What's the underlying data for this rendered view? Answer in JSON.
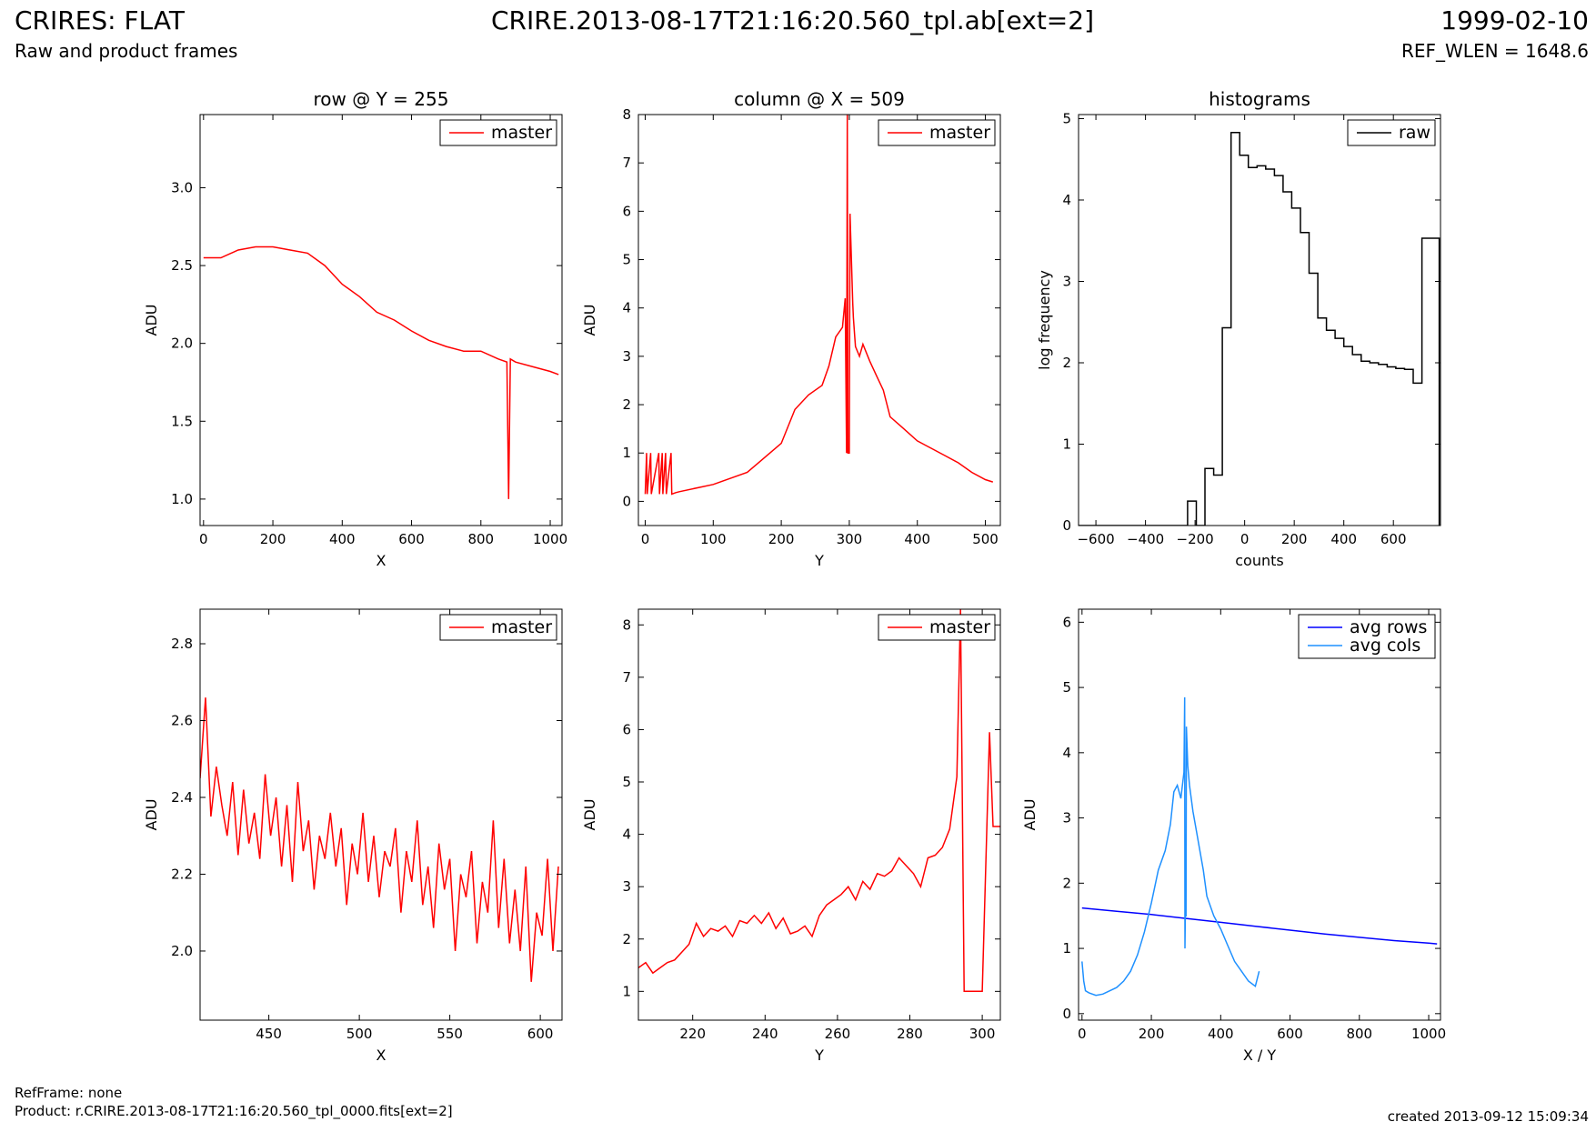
{
  "header": {
    "title": "CRIRES: FLAT",
    "subtitle": "Raw and product frames",
    "file": "CRIRE.2013-08-17T21:16:20.560_tpl.ab[ext=2]",
    "date": "1999-02-10",
    "ref_wlen": "REF_WLEN = 1648.6"
  },
  "footer": {
    "ref_frame": "RefFrame: none",
    "product": "Product: r.CRIRE.2013-08-17T21:16:20.560_tpl_0000.fits[ext=2]",
    "created": "created 2013-09-12 15:09:34"
  },
  "chart_data": [
    {
      "type": "line",
      "title": "row @ Y = 255",
      "xlabel": "X",
      "ylabel": "ADU",
      "xlim": [
        -10,
        1034
      ],
      "ylim": [
        0.83,
        3.47
      ],
      "xticks": [
        0,
        200,
        400,
        600,
        800,
        1000
      ],
      "yticks": [
        1.0,
        1.5,
        2.0,
        2.5,
        3.0
      ],
      "ytick_labels": [
        "1.0",
        "1.5",
        "2.0",
        "2.5",
        "3.0"
      ],
      "grid": false,
      "legend": "top-right",
      "step": false,
      "series": [
        {
          "name": "master",
          "color": "#ff0000",
          "x": [
            0,
            50,
            100,
            150,
            200,
            250,
            300,
            350,
            400,
            450,
            500,
            550,
            600,
            650,
            700,
            750,
            800,
            850,
            875,
            880,
            885,
            900,
            950,
            1000,
            1024
          ],
          "y": [
            2.55,
            2.55,
            2.6,
            2.62,
            2.62,
            2.6,
            2.58,
            2.5,
            2.38,
            2.3,
            2.2,
            2.15,
            2.08,
            2.02,
            1.98,
            1.95,
            1.95,
            1.9,
            1.88,
            1.0,
            1.9,
            1.88,
            1.85,
            1.82,
            1.8
          ]
        }
      ]
    },
    {
      "type": "line",
      "title": "column @ X = 509",
      "xlabel": "Y",
      "ylabel": "ADU",
      "xlim": [
        -10,
        522
      ],
      "ylim": [
        -0.5,
        8
      ],
      "xticks": [
        0,
        100,
        200,
        300,
        400,
        500
      ],
      "yticks": [
        0,
        1,
        2,
        3,
        4,
        5,
        6,
        7,
        8
      ],
      "ytick_labels": [
        "0",
        "1",
        "2",
        "3",
        "4",
        "5",
        "6",
        "7",
        "8"
      ],
      "grid": false,
      "legend": "top-right",
      "step": false,
      "series": [
        {
          "name": "master",
          "color": "#ff0000",
          "x": [
            0,
            2,
            3,
            8,
            9,
            20,
            21,
            25,
            26,
            30,
            31,
            38,
            39,
            45,
            50,
            100,
            150,
            200,
            220,
            240,
            260,
            270,
            280,
            290,
            294,
            296,
            297,
            298,
            300,
            301,
            305,
            306,
            308,
            309,
            315,
            320,
            330,
            340,
            350,
            360,
            380,
            400,
            420,
            440,
            460,
            480,
            500,
            511
          ],
          "y": [
            0.15,
            1.0,
            0.15,
            1.0,
            0.15,
            1.0,
            0.15,
            1.0,
            0.15,
            1.0,
            0.15,
            1.0,
            0.15,
            0.18,
            0.2,
            0.35,
            0.6,
            1.2,
            1.9,
            2.2,
            2.4,
            2.8,
            3.4,
            3.6,
            4.2,
            1.0,
            8.0,
            1.0,
            1.0,
            5.95,
            4.1,
            3.8,
            3.4,
            3.2,
            3.0,
            3.25,
            2.9,
            2.6,
            2.3,
            1.75,
            1.5,
            1.25,
            1.1,
            0.95,
            0.8,
            0.6,
            0.45,
            0.4
          ]
        }
      ]
    },
    {
      "type": "bar",
      "title": "histograms",
      "xlabel": "counts",
      "ylabel": "log frequency",
      "xlim": [
        -670,
        790
      ],
      "ylim": [
        0,
        5.05
      ],
      "xticks": [
        -600,
        -400,
        -200,
        0,
        200,
        400,
        600
      ],
      "xtick_labels": [
        "−600",
        "−400",
        "−200",
        "0",
        "200",
        "400",
        "600"
      ],
      "yticks": [
        0,
        1,
        2,
        3,
        4,
        5
      ],
      "ytick_labels": [
        "0",
        "1",
        "2",
        "3",
        "4",
        "5"
      ],
      "grid": false,
      "legend": "top-right",
      "step": true,
      "series": [
        {
          "name": "raw",
          "color": "#000000",
          "x": [
            -670,
            -230,
            -230,
            -195,
            -195,
            -160,
            -160,
            -125,
            -125,
            -90,
            -90,
            -55,
            -55,
            -20,
            -20,
            15,
            15,
            50,
            50,
            85,
            85,
            120,
            120,
            155,
            155,
            190,
            190,
            225,
            225,
            260,
            260,
            295,
            295,
            330,
            330,
            365,
            365,
            400,
            400,
            435,
            435,
            470,
            470,
            505,
            505,
            540,
            540,
            575,
            575,
            610,
            610,
            645,
            645,
            680,
            680,
            715,
            715,
            750,
            750,
            785,
            785
          ],
          "y": [
            0,
            0,
            0.3,
            0.3,
            0,
            0,
            0.7,
            0.7,
            0.62,
            0.62,
            2.43,
            2.43,
            4.83,
            4.83,
            4.55,
            4.55,
            4.4,
            4.4,
            4.42,
            4.42,
            4.38,
            4.38,
            4.3,
            4.3,
            4.1,
            4.1,
            3.9,
            3.9,
            3.6,
            3.6,
            3.1,
            3.1,
            2.55,
            2.55,
            2.4,
            2.4,
            2.3,
            2.3,
            2.2,
            2.2,
            2.1,
            2.1,
            2.02,
            2.02,
            2.0,
            2.0,
            1.98,
            1.98,
            1.95,
            1.95,
            1.93,
            1.93,
            1.92,
            1.92,
            1.75,
            1.75,
            3.53,
            3.53,
            3.53,
            3.53,
            0
          ]
        }
      ]
    },
    {
      "type": "line",
      "title": "",
      "xlabel": "X",
      "ylabel": "ADU",
      "xlim": [
        412,
        612
      ],
      "ylim": [
        1.82,
        2.89
      ],
      "xticks": [
        450,
        500,
        550,
        600
      ],
      "yticks": [
        2.0,
        2.2,
        2.4,
        2.6,
        2.8
      ],
      "ytick_labels": [
        "2.0",
        "2.2",
        "2.4",
        "2.6",
        "2.8"
      ],
      "grid": false,
      "legend": "top-right",
      "step": true,
      "series": [
        {
          "name": "master",
          "color": "#ff0000",
          "x": [
            412,
            415,
            418,
            421,
            424,
            427,
            430,
            433,
            436,
            439,
            442,
            445,
            448,
            451,
            454,
            457,
            460,
            463,
            466,
            469,
            472,
            475,
            478,
            481,
            484,
            487,
            490,
            493,
            496,
            499,
            502,
            505,
            508,
            511,
            514,
            517,
            520,
            523,
            526,
            529,
            532,
            535,
            538,
            541,
            544,
            547,
            550,
            553,
            556,
            559,
            562,
            565,
            568,
            571,
            574,
            577,
            580,
            583,
            586,
            589,
            592,
            595,
            598,
            601,
            604,
            607,
            610
          ],
          "y": [
            2.45,
            2.66,
            2.35,
            2.48,
            2.38,
            2.3,
            2.44,
            2.25,
            2.42,
            2.28,
            2.36,
            2.24,
            2.46,
            2.3,
            2.4,
            2.22,
            2.38,
            2.18,
            2.44,
            2.26,
            2.34,
            2.16,
            2.3,
            2.24,
            2.36,
            2.22,
            2.32,
            2.12,
            2.28,
            2.2,
            2.36,
            2.18,
            2.3,
            2.14,
            2.26,
            2.22,
            2.32,
            2.1,
            2.26,
            2.18,
            2.34,
            2.12,
            2.22,
            2.06,
            2.28,
            2.16,
            2.24,
            2.0,
            2.2,
            2.14,
            2.26,
            2.02,
            2.18,
            2.1,
            2.34,
            2.06,
            2.24,
            2.02,
            2.16,
            2.0,
            2.22,
            1.92,
            2.1,
            2.04,
            2.24,
            2.0,
            2.22
          ]
        }
      ]
    },
    {
      "type": "line",
      "title": "",
      "xlabel": "Y",
      "ylabel": "ADU",
      "xlim": [
        205,
        305
      ],
      "ylim": [
        0.45,
        8.3
      ],
      "xticks": [
        220,
        240,
        260,
        280,
        300
      ],
      "yticks": [
        1,
        2,
        3,
        4,
        5,
        6,
        7,
        8
      ],
      "ytick_labels": [
        "1",
        "2",
        "3",
        "4",
        "5",
        "6",
        "7",
        "8"
      ],
      "grid": false,
      "legend": "top-right",
      "step": true,
      "series": [
        {
          "name": "master",
          "color": "#ff0000",
          "x": [
            205,
            207,
            209,
            211,
            213,
            215,
            217,
            219,
            221,
            223,
            225,
            227,
            229,
            231,
            233,
            235,
            237,
            239,
            241,
            243,
            245,
            247,
            249,
            251,
            253,
            255,
            257,
            259,
            261,
            263,
            265,
            267,
            269,
            271,
            273,
            275,
            277,
            279,
            281,
            283,
            285,
            287,
            289,
            291,
            293,
            294,
            295,
            296,
            298,
            300,
            302,
            303,
            305
          ],
          "y": [
            1.45,
            1.55,
            1.35,
            1.45,
            1.55,
            1.6,
            1.75,
            1.9,
            2.3,
            2.05,
            2.2,
            2.15,
            2.25,
            2.05,
            2.35,
            2.3,
            2.45,
            2.3,
            2.5,
            2.2,
            2.4,
            2.1,
            2.15,
            2.25,
            2.05,
            2.45,
            2.65,
            2.75,
            2.85,
            3.0,
            2.75,
            3.1,
            2.95,
            3.25,
            3.2,
            3.3,
            3.55,
            3.4,
            3.25,
            3.0,
            3.55,
            3.6,
            3.75,
            4.1,
            5.1,
            8.3,
            1.0,
            1.0,
            1.0,
            1.0,
            5.95,
            4.15,
            4.15
          ]
        }
      ]
    },
    {
      "type": "line",
      "title": "",
      "xlabel": "X / Y",
      "ylabel": "ADU",
      "xlim": [
        -10,
        1034
      ],
      "ylim": [
        -0.1,
        6.2
      ],
      "xticks": [
        0,
        200,
        400,
        600,
        800,
        1000
      ],
      "yticks": [
        0,
        1,
        2,
        3,
        4,
        5,
        6
      ],
      "ytick_labels": [
        "0",
        "1",
        "2",
        "3",
        "4",
        "5",
        "6"
      ],
      "grid": false,
      "legend": "top-right",
      "step": false,
      "series": [
        {
          "name": "avg rows",
          "color": "#0000ff",
          "x": [
            0,
            100,
            200,
            300,
            400,
            500,
            600,
            700,
            800,
            900,
            1000,
            1024
          ],
          "y": [
            1.62,
            1.57,
            1.52,
            1.46,
            1.4,
            1.34,
            1.28,
            1.22,
            1.17,
            1.12,
            1.08,
            1.07
          ]
        },
        {
          "name": "avg cols",
          "color": "#1e90ff",
          "x": [
            0,
            5,
            10,
            20,
            40,
            60,
            80,
            100,
            120,
            140,
            160,
            180,
            200,
            220,
            240,
            255,
            265,
            275,
            285,
            294,
            296,
            297,
            298,
            300,
            301,
            305,
            310,
            320,
            330,
            340,
            350,
            360,
            380,
            400,
            420,
            440,
            460,
            480,
            500,
            511
          ],
          "y": [
            0.8,
            0.5,
            0.35,
            0.32,
            0.28,
            0.3,
            0.35,
            0.4,
            0.5,
            0.65,
            0.9,
            1.25,
            1.7,
            2.2,
            2.5,
            2.9,
            3.4,
            3.5,
            3.3,
            3.7,
            4.85,
            1.0,
            1.5,
            1.5,
            4.4,
            3.8,
            3.5,
            3.1,
            2.8,
            2.5,
            2.2,
            1.8,
            1.5,
            1.3,
            1.05,
            0.8,
            0.65,
            0.5,
            0.42,
            0.65
          ]
        }
      ]
    }
  ]
}
